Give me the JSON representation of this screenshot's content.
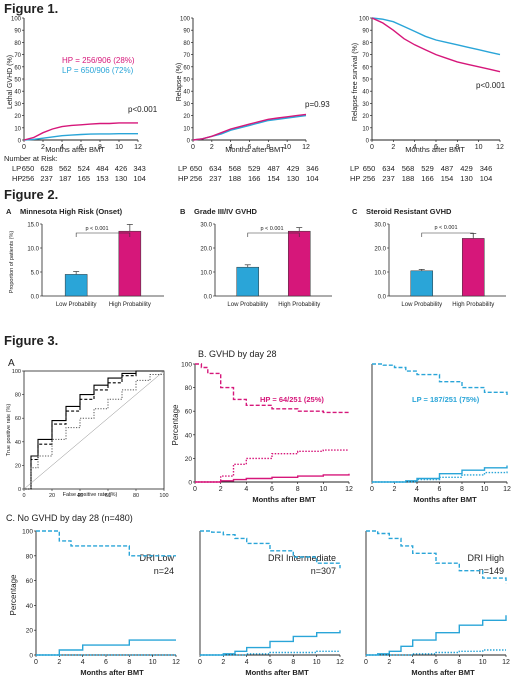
{
  "figure1": {
    "title": "Figure 1.",
    "panels": [
      {
        "ylabel": "Lethal GVHD (%)",
        "pvalue": "p<0.001",
        "legend_hp": "HP = 256/906 (28%)",
        "legend_lp": "LP = 650/906 (72%)"
      },
      {
        "ylabel": "Relapse (%)",
        "pvalue": "p=0.93"
      },
      {
        "ylabel": "Relapse free survival (%)",
        "pvalue": "p<0.001"
      }
    ],
    "xlabel": "Months after BMT",
    "risk": {
      "title": "Number at Risk:",
      "lp_label": "LP",
      "hp_label": "HP",
      "lp_values": [
        "650",
        "628",
        "562",
        "524",
        "484",
        "426",
        "343"
      ],
      "hp_values": [
        "256",
        "237",
        "187",
        "165",
        "153",
        "130",
        "104"
      ],
      "lp_values_b": [
        "650",
        "634",
        "568",
        "529",
        "487",
        "429",
        "346"
      ],
      "hp_values_b": [
        "256",
        "237",
        "188",
        "166",
        "154",
        "130",
        "104"
      ]
    }
  },
  "figure2": {
    "title": "Figure 2.",
    "panels": [
      {
        "letter": "A",
        "title": "Minnesota High Risk (Onset)",
        "ylabel": "Proportion of patients (%)",
        "pvalue": "p < 0.001"
      },
      {
        "letter": "B",
        "title": "Grade III/IV GVHD",
        "pvalue": "p < 0.001"
      },
      {
        "letter": "C",
        "title": "Steroid Resistant GVHD",
        "pvalue": "p < 0.001"
      }
    ],
    "categories": [
      "Low Probability",
      "High Probability"
    ]
  },
  "figure3": {
    "title": "Figure 3.",
    "roc": {
      "letter": "A",
      "xlabel": "False positive rate (%)",
      "ylabel": "True positive rate (%)"
    },
    "b": {
      "title": "B. GVHD by day 28",
      "ylabel": "Percentage",
      "xlabel": "Months after BMT",
      "hp_label": "HP = 64/251 (25%)",
      "lp_label": "LP = 187/251 (75%)"
    },
    "c": {
      "title": "C. No GVHD by day 28 (n=480)",
      "ylabel": "Percentage",
      "xlabel": "Months after BMT",
      "panels": [
        {
          "label1": "DRI Low",
          "label2": "n=24"
        },
        {
          "label1": "DRI Intermediate",
          "label2": "n=307"
        },
        {
          "label1": "DRI High",
          "label2": "n=149"
        }
      ]
    }
  },
  "colors": {
    "hp": "#d6177a",
    "lp": "#2aa5d8",
    "axis": "#222222"
  },
  "chart_data": [
    {
      "type": "line",
      "name": "fig1-lethal-gvhd",
      "x": [
        0,
        1,
        2,
        3,
        4,
        5,
        6,
        7,
        8,
        9,
        10,
        11,
        12
      ],
      "xlim": [
        0,
        12
      ],
      "ylim": [
        0,
        100
      ],
      "yticks": [
        0,
        10,
        20,
        30,
        40,
        50,
        60,
        70,
        80,
        90,
        100
      ],
      "series": [
        {
          "name": "HP",
          "values": [
            0,
            2,
            6,
            9,
            11,
            12,
            12.5,
            13,
            13.5,
            13.5,
            14,
            14,
            14
          ]
        },
        {
          "name": "LP",
          "values": [
            0,
            0.5,
            1.5,
            2.5,
            3.5,
            4,
            4.5,
            4.8,
            5,
            5,
            5.2,
            5.2,
            5.2
          ]
        }
      ]
    },
    {
      "type": "line",
      "name": "fig1-relapse",
      "x": [
        0,
        1,
        2,
        3,
        4,
        5,
        6,
        7,
        8,
        9,
        10,
        11,
        12
      ],
      "xlim": [
        0,
        12
      ],
      "ylim": [
        0,
        100
      ],
      "yticks": [
        0,
        10,
        20,
        30,
        40,
        50,
        60,
        70,
        80,
        90,
        100
      ],
      "series": [
        {
          "name": "HP",
          "values": [
            0,
            1,
            3,
            6,
            9,
            11,
            13,
            15,
            17,
            18,
            19,
            20,
            21
          ]
        },
        {
          "name": "LP",
          "values": [
            0,
            1,
            3,
            5,
            8,
            10,
            12,
            14,
            16,
            17,
            18,
            19,
            20
          ]
        }
      ]
    },
    {
      "type": "line",
      "name": "fig1-rfs",
      "x": [
        0,
        1,
        2,
        3,
        4,
        5,
        6,
        7,
        8,
        9,
        10,
        11,
        12
      ],
      "xlim": [
        0,
        12
      ],
      "ylim": [
        0,
        100
      ],
      "yticks": [
        0,
        10,
        20,
        30,
        40,
        50,
        60,
        70,
        80,
        90,
        100
      ],
      "series": [
        {
          "name": "HP",
          "values": [
            100,
            96,
            90,
            83,
            78,
            74,
            70,
            67,
            64,
            62,
            60,
            58,
            56
          ]
        },
        {
          "name": "LP",
          "values": [
            100,
            99,
            97,
            93,
            89,
            85,
            82,
            80,
            78,
            76,
            74,
            72,
            70
          ]
        }
      ]
    },
    {
      "type": "bar",
      "name": "fig2-minnesota",
      "categories": [
        "Low Probability",
        "High Probability"
      ],
      "values": [
        4.5,
        13.5
      ],
      "errors": [
        0.6,
        1.4
      ],
      "ylim": [
        0,
        15
      ],
      "yticks": [
        0,
        5,
        10,
        15
      ],
      "yticklabels": [
        "0.0",
        "5.0",
        "10.0",
        "15.0"
      ]
    },
    {
      "type": "bar",
      "name": "fig2-grade34",
      "categories": [
        "Low Probability",
        "High Probability"
      ],
      "values": [
        12,
        27
      ],
      "errors": [
        1,
        1.5
      ],
      "ylim": [
        0,
        30
      ],
      "yticks": [
        0,
        10,
        20,
        30
      ],
      "yticklabels": [
        "0.0",
        "10.0",
        "20.0",
        "30.0"
      ]
    },
    {
      "type": "bar",
      "name": "fig2-steroid",
      "categories": [
        "Low Probability",
        "High Probability"
      ],
      "values": [
        10.5,
        24
      ],
      "errors": [
        0.6,
        2
      ],
      "ylim": [
        0,
        30
      ],
      "yticks": [
        0,
        10,
        20,
        30
      ],
      "yticklabels": [
        "0.0",
        "10.0",
        "20.0",
        "30.0"
      ]
    },
    {
      "type": "line",
      "name": "fig3-roc",
      "xlim": [
        0,
        100
      ],
      "ylim": [
        0,
        100
      ],
      "xticks": [
        0,
        20,
        40,
        60,
        80,
        100
      ],
      "yticks": [
        0,
        20,
        40,
        60,
        80,
        100
      ],
      "series": [
        {
          "x": [
            0,
            5,
            10,
            20,
            30,
            40,
            50,
            60,
            70,
            80,
            90,
            100
          ],
          "values": [
            0,
            28,
            42,
            58,
            70,
            80,
            88,
            94,
            98,
            100,
            100,
            100
          ],
          "style": "solid"
        },
        {
          "x": [
            0,
            5,
            10,
            20,
            30,
            40,
            50,
            60,
            70,
            80,
            90,
            100
          ],
          "values": [
            0,
            25,
            38,
            55,
            66,
            76,
            84,
            90,
            96,
            100,
            100,
            100
          ],
          "style": "dashed"
        },
        {
          "x": [
            0,
            5,
            10,
            20,
            30,
            40,
            50,
            60,
            70,
            80,
            90,
            100
          ],
          "values": [
            0,
            18,
            28,
            42,
            52,
            60,
            68,
            76,
            84,
            92,
            97,
            100
          ],
          "style": "dotted"
        },
        {
          "x": [
            0,
            100
          ],
          "values": [
            0,
            100
          ],
          "style": "reference"
        }
      ]
    },
    {
      "type": "line",
      "name": "fig3-b-hp",
      "x": [
        0,
        0.5,
        1,
        2,
        3,
        4,
        6,
        8,
        10,
        12
      ],
      "xlim": [
        0,
        12
      ],
      "ylim": [
        0,
        100
      ],
      "yticks": [
        0,
        20,
        40,
        60,
        80,
        100
      ],
      "series": [
        {
          "name": "HP-dashed",
          "values": [
            100,
            97,
            92,
            80,
            70,
            65,
            62,
            60,
            59,
            59
          ]
        },
        {
          "name": "HP-dotted",
          "values": [
            0,
            0,
            0,
            5,
            15,
            20,
            24,
            26,
            27,
            27
          ]
        },
        {
          "name": "HP-solid",
          "values": [
            0,
            0,
            0,
            1,
            2,
            3,
            4,
            5,
            6,
            7
          ]
        }
      ]
    },
    {
      "type": "line",
      "name": "fig3-b-lp",
      "x": [
        0,
        1,
        2,
        3,
        4,
        6,
        8,
        10,
        12
      ],
      "xlim": [
        0,
        12
      ],
      "ylim": [
        0,
        100
      ],
      "series": [
        {
          "name": "LP-dashed",
          "values": [
            100,
            99,
            97,
            94,
            91,
            85,
            80,
            76,
            73
          ]
        },
        {
          "name": "LP-solid",
          "values": [
            0,
            0,
            0,
            1,
            3,
            7,
            10,
            12,
            14
          ]
        },
        {
          "name": "LP-dotted",
          "values": [
            0,
            0,
            0,
            0,
            2,
            4,
            6,
            8,
            9
          ]
        }
      ]
    },
    {
      "type": "line",
      "name": "fig3-c-low",
      "x": [
        0,
        1,
        2,
        3,
        4,
        6,
        8,
        10,
        12
      ],
      "xlim": [
        0,
        12
      ],
      "ylim": [
        0,
        100
      ],
      "yticks": [
        0,
        20,
        40,
        60,
        80,
        100
      ],
      "series": [
        {
          "name": "dashed",
          "values": [
            100,
            100,
            92,
            88,
            88,
            88,
            80,
            80,
            80
          ]
        },
        {
          "name": "solid",
          "values": [
            0,
            0,
            4,
            4,
            8,
            8,
            12,
            12,
            12
          ]
        },
        {
          "name": "dotted",
          "values": [
            0,
            0,
            0,
            0,
            0,
            0,
            0,
            0,
            0
          ]
        }
      ]
    },
    {
      "type": "line",
      "name": "fig3-c-intermediate",
      "x": [
        0,
        1,
        2,
        3,
        4,
        6,
        8,
        10,
        12
      ],
      "xlim": [
        0,
        12
      ],
      "ylim": [
        0,
        100
      ],
      "series": [
        {
          "name": "dashed",
          "values": [
            100,
            99,
            97,
            94,
            90,
            84,
            79,
            74,
            70
          ]
        },
        {
          "name": "solid",
          "values": [
            0,
            0,
            1,
            3,
            6,
            11,
            15,
            18,
            20
          ]
        },
        {
          "name": "dotted",
          "values": [
            0,
            0,
            0,
            0,
            1,
            2,
            2,
            3,
            3
          ]
        }
      ]
    },
    {
      "type": "line",
      "name": "fig3-c-high",
      "x": [
        0,
        1,
        2,
        3,
        4,
        6,
        8,
        10,
        12
      ],
      "xlim": [
        0,
        12
      ],
      "ylim": [
        0,
        100
      ],
      "series": [
        {
          "name": "dashed",
          "values": [
            100,
            98,
            94,
            88,
            82,
            74,
            68,
            62,
            58
          ]
        },
        {
          "name": "solid",
          "values": [
            0,
            1,
            3,
            7,
            12,
            18,
            24,
            28,
            32
          ]
        },
        {
          "name": "dotted",
          "values": [
            0,
            0,
            0,
            0,
            1,
            2,
            3,
            4,
            4
          ]
        }
      ]
    }
  ]
}
